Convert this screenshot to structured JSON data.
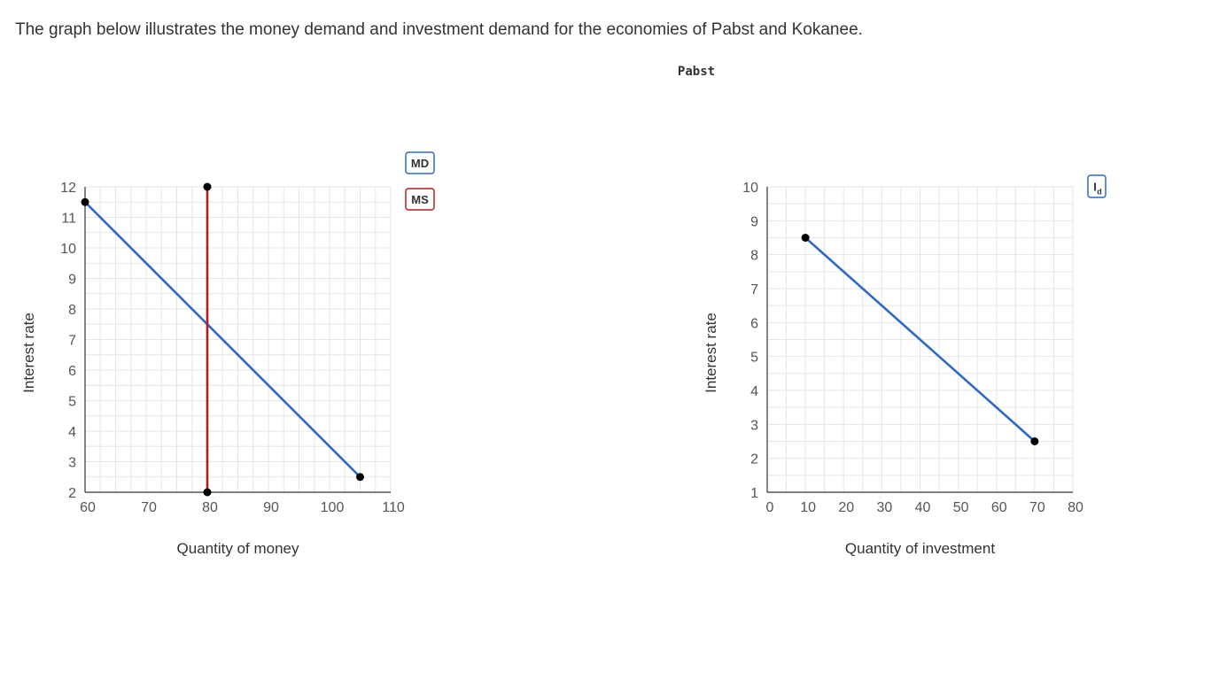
{
  "question": "The graph below illustrates the money demand and investment demand for the economies of Pabst and Kokanee.",
  "header": {
    "chart_title": "Pabst"
  },
  "colors": {
    "demand": "#2f69c7",
    "supply": "#b31d1d",
    "point": "#000000",
    "grid": "#e6e6e6",
    "axis": "#333333"
  },
  "chart_data": [
    {
      "type": "line",
      "title": "",
      "xlabel": "Quantity of money",
      "ylabel": "Interest rate",
      "xlim": [
        60,
        110
      ],
      "ylim": [
        2,
        12
      ],
      "x_ticks": [
        60,
        70,
        80,
        90,
        100,
        110
      ],
      "y_ticks": [
        2,
        3,
        4,
        5,
        6,
        7,
        8,
        9,
        10,
        11,
        12
      ],
      "grid": true,
      "legend": "top-right",
      "series": [
        {
          "name": "MD",
          "color": "#2f69c7",
          "points": [
            [
              60,
              11.5
            ],
            [
              105,
              2.5
            ]
          ]
        },
        {
          "name": "MS",
          "color": "#b31d1d",
          "points": [
            [
              80,
              2
            ],
            [
              80,
              12
            ]
          ]
        }
      ]
    },
    {
      "type": "line",
      "title": "",
      "xlabel": "Quantity of investment",
      "ylabel": "Interest rate",
      "xlim": [
        0,
        80
      ],
      "ylim": [
        1,
        10
      ],
      "x_ticks": [
        0,
        10,
        20,
        30,
        40,
        50,
        60,
        70,
        80
      ],
      "y_ticks": [
        1,
        2,
        3,
        4,
        5,
        6,
        7,
        8,
        9,
        10
      ],
      "grid": true,
      "legend": "top-right",
      "series": [
        {
          "name": "I",
          "subscript": "d",
          "color": "#2f69c7",
          "points": [
            [
              10,
              8.5
            ],
            [
              70,
              2.5
            ]
          ]
        }
      ]
    }
  ]
}
